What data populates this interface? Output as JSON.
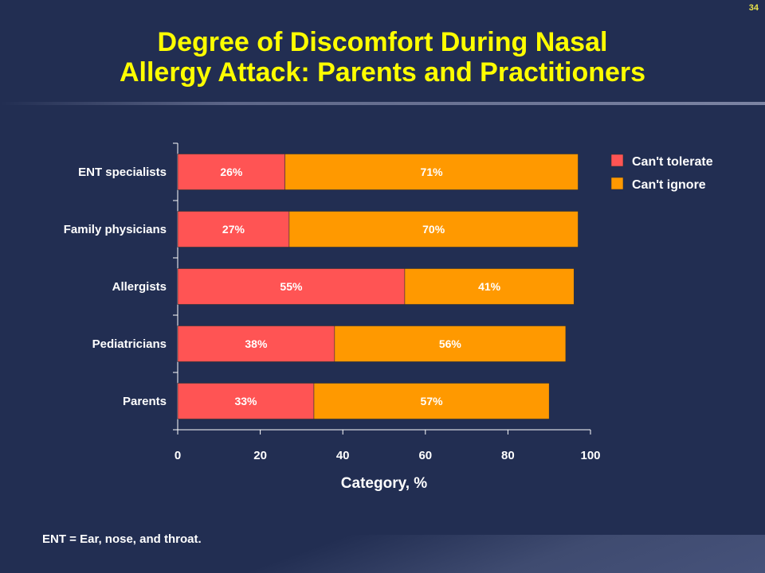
{
  "slide": {
    "number": "34",
    "title_line1": "Degree of Discomfort During Nasal",
    "title_line2": "Allergy Attack: Parents and Practitioners",
    "footnote": "ENT = Ear, nose, and throat."
  },
  "colors": {
    "background": "#222e52",
    "title": "#ffff00",
    "cant_tolerate": "#ff5454",
    "cant_ignore": "#ff9900"
  },
  "chart_data": {
    "type": "bar",
    "orientation": "horizontal",
    "stacked": true,
    "categories": [
      "Parents",
      "Pediatricians",
      "Allergists",
      "Family physicians",
      "ENT specialists"
    ],
    "series": [
      {
        "name": "Can't tolerate",
        "values": [
          33,
          38,
          55,
          27,
          26
        ],
        "labels": [
          "33%",
          "38%",
          "55%",
          "27%",
          "26%"
        ],
        "color": "#ff5454"
      },
      {
        "name": "Can't ignore",
        "values": [
          57,
          56,
          41,
          70,
          71
        ],
        "labels": [
          "57%",
          "56%",
          "41%",
          "70%",
          "71%"
        ],
        "color": "#ff9900"
      }
    ],
    "xlabel": "Category, %",
    "ylabel": "",
    "xlim": [
      0,
      100
    ],
    "xticks": [
      "0",
      "20",
      "40",
      "60",
      "80",
      "100"
    ],
    "grid": false,
    "legend": "top-right"
  }
}
